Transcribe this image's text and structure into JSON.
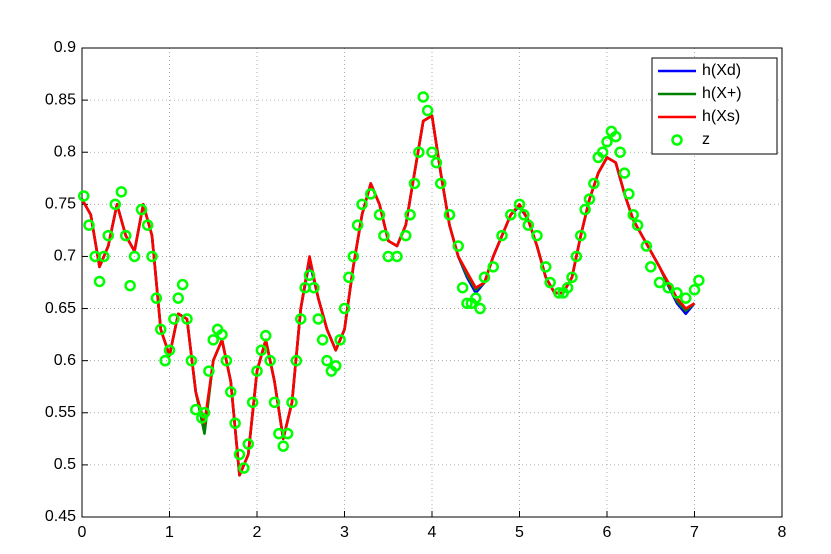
{
  "chart_data": {
    "type": "line",
    "grid": true,
    "legend": "northeast",
    "xlim": [
      0,
      8
    ],
    "ylim": [
      0.45,
      0.9
    ],
    "xticks": [
      0,
      1,
      2,
      3,
      4,
      5,
      6,
      7,
      8
    ],
    "yticks": [
      0.45,
      0.5,
      0.55,
      0.6,
      0.65,
      0.7,
      0.75,
      0.8,
      0.85,
      0.9
    ],
    "x": [
      0,
      0.1,
      0.2,
      0.3,
      0.4,
      0.5,
      0.6,
      0.7,
      0.8,
      0.9,
      1.0,
      1.1,
      1.2,
      1.3,
      1.4,
      1.5,
      1.6,
      1.7,
      1.8,
      1.9,
      2.0,
      2.1,
      2.2,
      2.3,
      2.4,
      2.5,
      2.6,
      2.7,
      2.8,
      2.9,
      3.0,
      3.1,
      3.2,
      3.3,
      3.4,
      3.5,
      3.6,
      3.7,
      3.8,
      3.9,
      4.0,
      4.1,
      4.2,
      4.3,
      4.4,
      4.5,
      4.6,
      4.7,
      4.8,
      4.9,
      5.0,
      5.1,
      5.2,
      5.3,
      5.4,
      5.5,
      5.6,
      5.7,
      5.8,
      5.9,
      6.0,
      6.1,
      6.2,
      6.3,
      6.4,
      6.5,
      6.6,
      6.7,
      6.8,
      6.9,
      7.0
    ],
    "series": [
      {
        "name": "h(Xd)",
        "color": "#0000ff",
        "values": [
          0.755,
          0.74,
          0.69,
          0.71,
          0.75,
          0.72,
          0.705,
          0.75,
          0.72,
          0.63,
          0.605,
          0.645,
          0.64,
          0.57,
          0.535,
          0.6,
          0.62,
          0.58,
          0.49,
          0.51,
          0.59,
          0.62,
          0.58,
          0.525,
          0.56,
          0.65,
          0.695,
          0.66,
          0.63,
          0.61,
          0.63,
          0.69,
          0.74,
          0.77,
          0.75,
          0.715,
          0.71,
          0.73,
          0.78,
          0.83,
          0.835,
          0.78,
          0.73,
          0.7,
          0.68,
          0.665,
          0.675,
          0.7,
          0.72,
          0.74,
          0.748,
          0.735,
          0.71,
          0.68,
          0.665,
          0.665,
          0.68,
          0.72,
          0.755,
          0.78,
          0.795,
          0.79,
          0.76,
          0.735,
          0.72,
          0.705,
          0.69,
          0.672,
          0.655,
          0.645,
          0.655
        ]
      },
      {
        "name": "h(X+)",
        "color": "#008000",
        "values": [
          0.755,
          0.74,
          0.69,
          0.71,
          0.75,
          0.72,
          0.705,
          0.75,
          0.72,
          0.63,
          0.605,
          0.645,
          0.64,
          0.57,
          0.53,
          0.6,
          0.62,
          0.58,
          0.49,
          0.51,
          0.59,
          0.62,
          0.58,
          0.525,
          0.56,
          0.65,
          0.698,
          0.66,
          0.63,
          0.61,
          0.63,
          0.69,
          0.74,
          0.77,
          0.75,
          0.715,
          0.71,
          0.73,
          0.78,
          0.83,
          0.835,
          0.78,
          0.73,
          0.7,
          0.682,
          0.668,
          0.675,
          0.7,
          0.72,
          0.74,
          0.75,
          0.735,
          0.71,
          0.68,
          0.665,
          0.665,
          0.68,
          0.72,
          0.755,
          0.78,
          0.795,
          0.79,
          0.76,
          0.735,
          0.72,
          0.705,
          0.69,
          0.673,
          0.657,
          0.648,
          0.655
        ]
      },
      {
        "name": "h(Xs)",
        "color": "#ff0000",
        "values": [
          0.755,
          0.74,
          0.69,
          0.71,
          0.75,
          0.72,
          0.705,
          0.75,
          0.72,
          0.63,
          0.605,
          0.645,
          0.64,
          0.57,
          0.54,
          0.6,
          0.62,
          0.58,
          0.49,
          0.51,
          0.59,
          0.62,
          0.58,
          0.525,
          0.56,
          0.65,
          0.7,
          0.66,
          0.63,
          0.61,
          0.63,
          0.69,
          0.74,
          0.77,
          0.75,
          0.715,
          0.71,
          0.73,
          0.78,
          0.83,
          0.835,
          0.78,
          0.73,
          0.7,
          0.685,
          0.67,
          0.675,
          0.7,
          0.72,
          0.74,
          0.75,
          0.735,
          0.71,
          0.68,
          0.665,
          0.665,
          0.68,
          0.72,
          0.755,
          0.78,
          0.795,
          0.79,
          0.76,
          0.735,
          0.72,
          0.705,
          0.69,
          0.675,
          0.66,
          0.65,
          0.655
        ]
      },
      {
        "name": "z",
        "type": "scatter",
        "color": "#00ff00",
        "x": [
          0.02,
          0.08,
          0.15,
          0.2,
          0.25,
          0.3,
          0.38,
          0.45,
          0.5,
          0.55,
          0.6,
          0.68,
          0.75,
          0.8,
          0.85,
          0.9,
          0.95,
          1.0,
          1.05,
          1.1,
          1.15,
          1.2,
          1.25,
          1.3,
          1.37,
          1.4,
          1.45,
          1.5,
          1.55,
          1.6,
          1.65,
          1.7,
          1.75,
          1.8,
          1.85,
          1.9,
          1.95,
          2.0,
          2.05,
          2.1,
          2.15,
          2.2,
          2.25,
          2.3,
          2.35,
          2.4,
          2.45,
          2.5,
          2.55,
          2.6,
          2.65,
          2.7,
          2.75,
          2.8,
          2.85,
          2.9,
          2.95,
          3.0,
          3.05,
          3.1,
          3.15,
          3.2,
          3.3,
          3.4,
          3.45,
          3.5,
          3.6,
          3.7,
          3.75,
          3.8,
          3.85,
          3.9,
          3.95,
          4.0,
          4.05,
          4.1,
          4.2,
          4.3,
          4.35,
          4.4,
          4.45,
          4.5,
          4.55,
          4.6,
          4.7,
          4.8,
          4.9,
          5.0,
          5.05,
          5.1,
          5.2,
          5.3,
          5.35,
          5.45,
          5.5,
          5.55,
          5.6,
          5.65,
          5.7,
          5.75,
          5.8,
          5.85,
          5.9,
          5.95,
          6.0,
          6.05,
          6.1,
          6.15,
          6.2,
          6.25,
          6.3,
          6.35,
          6.45,
          6.5,
          6.6,
          6.7,
          6.8,
          6.9,
          7.0,
          7.05
        ],
        "values": [
          0.758,
          0.73,
          0.7,
          0.676,
          0.7,
          0.72,
          0.75,
          0.762,
          0.72,
          0.672,
          0.7,
          0.745,
          0.73,
          0.7,
          0.66,
          0.63,
          0.6,
          0.61,
          0.64,
          0.66,
          0.673,
          0.64,
          0.6,
          0.553,
          0.545,
          0.55,
          0.59,
          0.62,
          0.63,
          0.625,
          0.6,
          0.57,
          0.54,
          0.51,
          0.497,
          0.52,
          0.56,
          0.59,
          0.61,
          0.624,
          0.6,
          0.56,
          0.53,
          0.518,
          0.53,
          0.56,
          0.6,
          0.64,
          0.67,
          0.682,
          0.67,
          0.64,
          0.62,
          0.6,
          0.59,
          0.595,
          0.62,
          0.65,
          0.68,
          0.7,
          0.73,
          0.75,
          0.76,
          0.74,
          0.72,
          0.7,
          0.7,
          0.72,
          0.74,
          0.77,
          0.8,
          0.853,
          0.84,
          0.8,
          0.79,
          0.77,
          0.74,
          0.71,
          0.67,
          0.655,
          0.655,
          0.66,
          0.65,
          0.68,
          0.69,
          0.72,
          0.74,
          0.75,
          0.74,
          0.73,
          0.72,
          0.69,
          0.675,
          0.665,
          0.665,
          0.67,
          0.68,
          0.7,
          0.72,
          0.745,
          0.755,
          0.77,
          0.795,
          0.8,
          0.81,
          0.82,
          0.815,
          0.8,
          0.78,
          0.76,
          0.74,
          0.73,
          0.71,
          0.69,
          0.675,
          0.67,
          0.665,
          0.66,
          0.668,
          0.677
        ]
      }
    ]
  }
}
